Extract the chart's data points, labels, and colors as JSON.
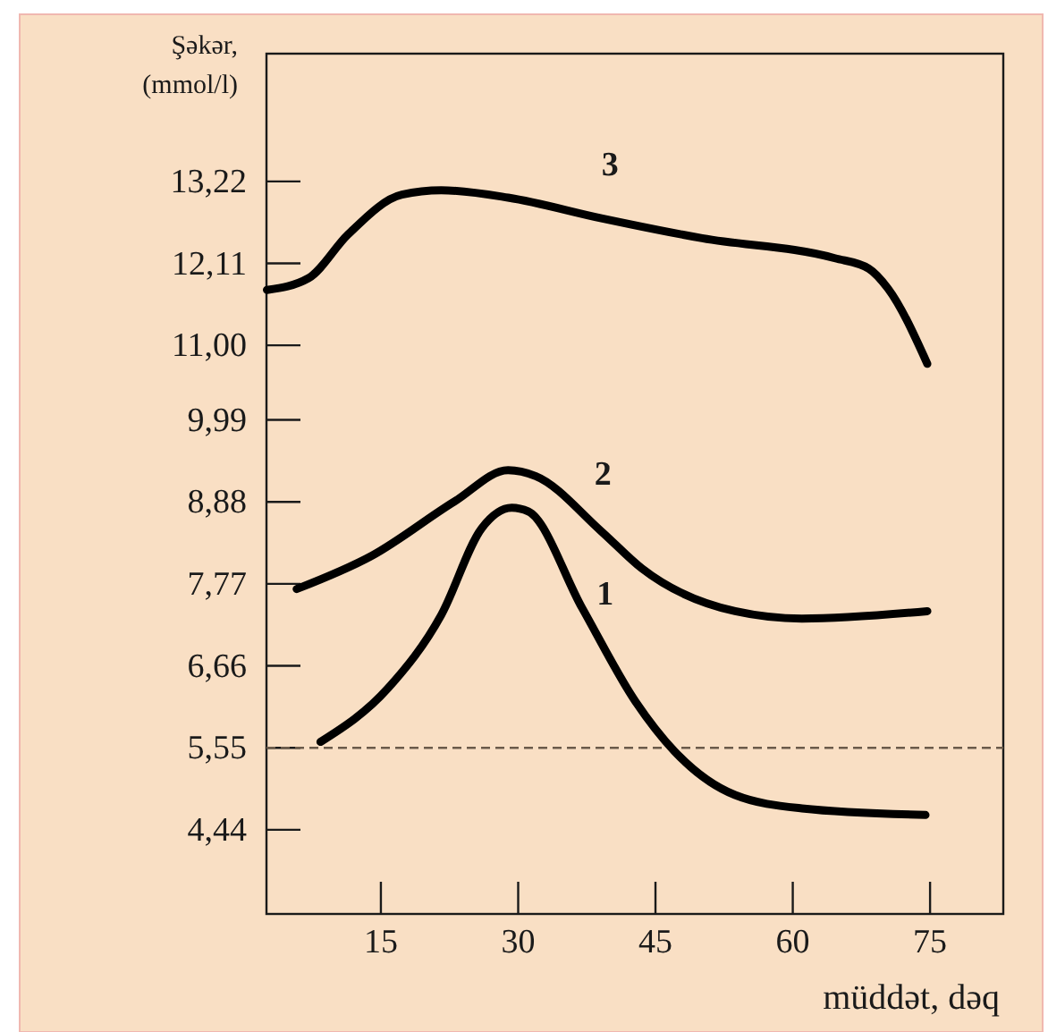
{
  "chart_data": {
    "type": "line",
    "xlabel": "müddət, dəq",
    "ylabel": "Şəkər, (mmol/l)",
    "xlim": [
      2.5,
      83
    ],
    "xticks": [
      15,
      30,
      45,
      60,
      75
    ],
    "ylim": [
      3.3,
      14.95
    ],
    "yticks": [
      {
        "value": 4.44,
        "label": "4,44"
      },
      {
        "value": 5.55,
        "label": "5,55"
      },
      {
        "value": 6.66,
        "label": "6,66"
      },
      {
        "value": 7.77,
        "label": "7,77"
      },
      {
        "value": 8.88,
        "label": "8,88"
      },
      {
        "value": 9.99,
        "label": "9,99"
      },
      {
        "value": 11.0,
        "label": "11,00"
      },
      {
        "value": 12.11,
        "label": "12,11"
      },
      {
        "value": 13.22,
        "label": "13,22"
      }
    ],
    "grid": false,
    "legend": false,
    "marker": "none",
    "line_style": "solid",
    "series": [
      {
        "name": "1",
        "color": "#000000",
        "x": [
          8.4,
          15.8,
          21.6,
          26,
          29.3,
          31.1,
          37,
          42.8,
          47.1,
          53.7,
          61,
          74.5
        ],
        "values": [
          5.63,
          6.36,
          7.35,
          8.52,
          8.8,
          8.75,
          7.44,
          6.18,
          5.5,
          4.91,
          4.73,
          4.64
        ]
      },
      {
        "name": "2",
        "color": "#000000",
        "x": [
          5.8,
          14,
          23.1,
          28.9,
          31.9,
          39.1,
          43.5,
          53.7,
          61,
          74.7
        ],
        "values": [
          7.7,
          8.15,
          8.89,
          9.31,
          9.23,
          8.48,
          7.98,
          7.4,
          7.3,
          7.4
        ]
      },
      {
        "name": "3",
        "color": "#000000",
        "x": [
          2.55,
          7.1,
          11.4,
          17.3,
          21.6,
          28.9,
          39.1,
          50.1,
          64.6,
          68.3,
          70.4,
          74.7
        ],
        "values": [
          11.75,
          11.91,
          12.5,
          13.04,
          13.1,
          13.0,
          12.72,
          12.45,
          12.18,
          12.04,
          11.77,
          10.75
        ]
      }
    ],
    "ref_lines": [
      {
        "axis": "y",
        "value": 5.55,
        "color": "#6b5a4a",
        "line_style": "dashed"
      }
    ]
  }
}
